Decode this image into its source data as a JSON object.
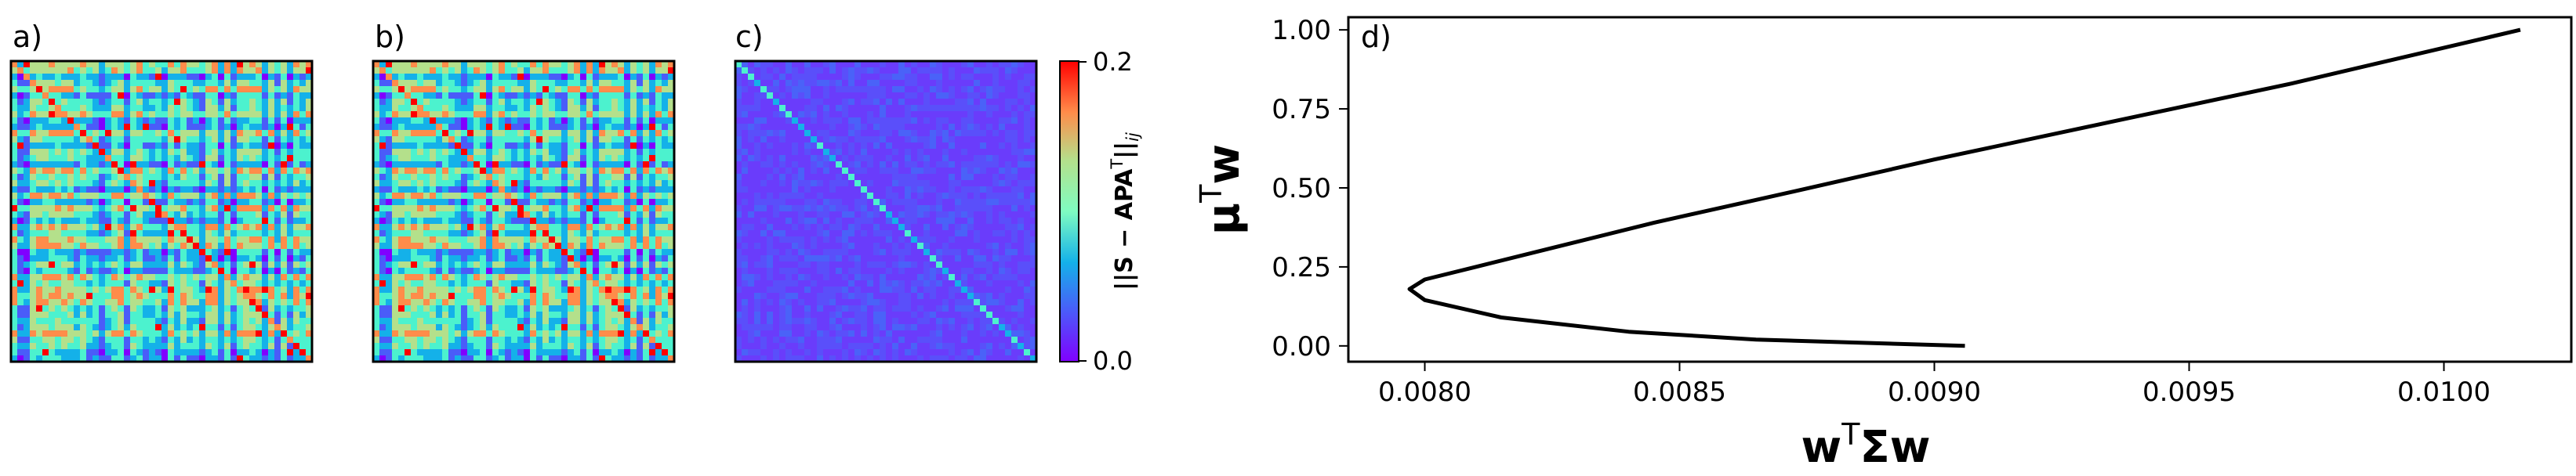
{
  "panels": {
    "a": {
      "label": "a)"
    },
    "b": {
      "label": "b)"
    },
    "c": {
      "label": "c)"
    },
    "d": {
      "label": "d)"
    }
  },
  "colorbar": {
    "label_main": "||S − APA",
    "label_sup": "T",
    "label_sub": "||",
    "label_sub_ij": "ij",
    "ticks": [
      "0.0",
      "0.2"
    ],
    "range": [
      0.0,
      0.2
    ],
    "colormap": "rainbow"
  },
  "chart_data": [
    {
      "type": "heatmap",
      "panel": "a",
      "description_ref": "dense block pattern",
      "colormap": "rainbow"
    },
    {
      "type": "heatmap",
      "panel": "b",
      "description_ref": "dense block pattern",
      "colormap": "rainbow"
    },
    {
      "type": "heatmap",
      "panel": "c",
      "colormap": "rainbow",
      "vmin": 0.0,
      "vmax": 0.2
    },
    {
      "type": "line",
      "panel": "d",
      "title": "",
      "xlabel_main": "w",
      "xlabel_sup": "T",
      "xlabel_tail": "Σw",
      "ylabel_main": "μ",
      "ylabel_sup": "T",
      "ylabel_tail": "w",
      "xlim": [
        0.00785,
        0.01025
      ],
      "ylim": [
        -0.05,
        1.04
      ],
      "xticks": [
        "0.0080",
        "0.0085",
        "0.0090",
        "0.0095",
        "0.0100"
      ],
      "xtick_values": [
        0.008,
        0.0085,
        0.009,
        0.0095,
        0.01
      ],
      "yticks": [
        "0.00",
        "0.25",
        "0.50",
        "0.75",
        "1.00"
      ],
      "ytick_values": [
        0.0,
        0.25,
        0.5,
        0.75,
        1.0
      ],
      "series": [
        {
          "color": "#000000",
          "x": [
            0.00906,
            0.00865,
            0.0084,
            0.00815,
            0.008,
            0.00797,
            0.008,
            0.0081,
            0.00825,
            0.00845,
            0.0087,
            0.009,
            0.00935,
            0.0097,
            0.01015
          ],
          "y": [
            0.0,
            0.02,
            0.045,
            0.09,
            0.145,
            0.18,
            0.21,
            0.25,
            0.31,
            0.39,
            0.48,
            0.59,
            0.71,
            0.83,
            1.0
          ]
        }
      ]
    }
  ]
}
